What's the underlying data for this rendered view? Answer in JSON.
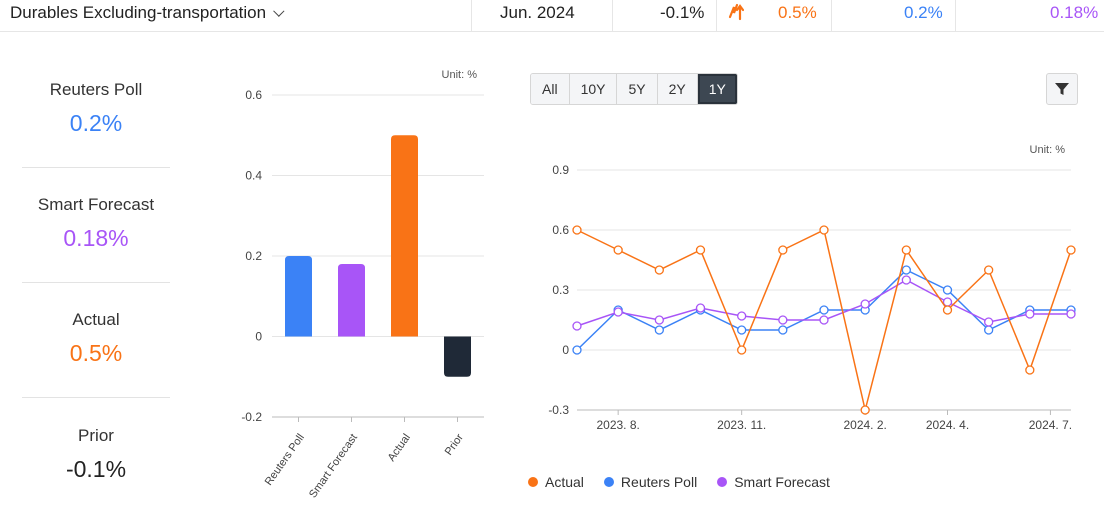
{
  "header": {
    "indicator_name": "Durables Excluding-transportation",
    "period": "Jun. 2024",
    "prior": "-0.1%",
    "actual": "0.5%",
    "reuters_poll": "0.2%",
    "smart_forecast": "0.18%"
  },
  "stats": {
    "reuters_label": "Reuters Poll",
    "reuters_value": "0.2%",
    "smart_label": "Smart Forecast",
    "smart_value": "0.18%",
    "actual_label": "Actual",
    "actual_value": "0.5%",
    "prior_label": "Prior",
    "prior_value": "-0.1%"
  },
  "range_buttons": [
    "All",
    "10Y",
    "5Y",
    "2Y",
    "1Y"
  ],
  "active_range": "1Y",
  "colors": {
    "actual": "#f97316",
    "reuters": "#3b82f6",
    "smart": "#a855f7",
    "prior": "#1f2937",
    "negative_text": "#222222"
  },
  "chart_data": [
    {
      "type": "bar",
      "unit_label": "Unit: %",
      "categories": [
        "Reuters Poll",
        "Smart Forecast",
        "Actual",
        "Prior"
      ],
      "values": [
        0.2,
        0.18,
        0.5,
        -0.1
      ],
      "yticks": [
        0.6,
        0.4,
        0.2,
        0,
        -0.2
      ],
      "ytick_labels": [
        "0.6",
        "0.4",
        "0.2",
        "0",
        "-0.2"
      ],
      "ylim": [
        -0.2,
        0.6
      ]
    },
    {
      "type": "line",
      "unit_label": "Unit: %",
      "yticks": [
        0.9,
        0.6,
        0.3,
        0,
        -0.3
      ],
      "ytick_labels": [
        "0.9",
        "0.6",
        "0.3",
        "0",
        "-0.3"
      ],
      "ylim": [
        -0.3,
        0.9
      ],
      "xtick_labels": [
        "2023. 8.",
        "2023. 11.",
        "2024. 2.",
        "2024. 4.",
        "2024. 7."
      ],
      "xtick_index": [
        2,
        8,
        14,
        18,
        23
      ],
      "series": [
        {
          "name": "Actual",
          "values": [
            0.6,
            0.5,
            0.4,
            0.5,
            0.0,
            0.5,
            0.6,
            -0.3,
            0.5,
            0.2,
            0.4,
            -0.1,
            0.5
          ]
        },
        {
          "name": "Reuters Poll",
          "values": [
            0.0,
            0.2,
            0.1,
            0.2,
            0.1,
            0.1,
            0.2,
            0.2,
            0.4,
            0.3,
            0.1,
            0.2,
            0.2
          ]
        },
        {
          "name": "Smart Forecast",
          "values": [
            0.12,
            0.19,
            0.15,
            0.21,
            0.17,
            0.15,
            0.15,
            0.23,
            0.35,
            0.24,
            0.14,
            0.18,
            0.18
          ]
        }
      ]
    }
  ]
}
